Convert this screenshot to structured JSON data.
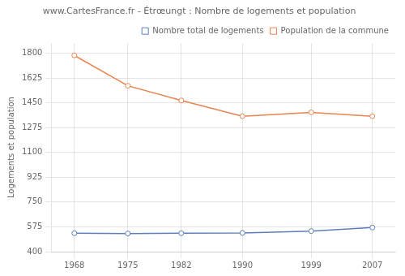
{
  "chart_data": {
    "type": "line",
    "title": "www.CartesFrance.fr - Étrœungt : Nombre de logements et population",
    "ylabel": "Logements et population",
    "x": [
      1968,
      1975,
      1982,
      1990,
      1999,
      2007
    ],
    "series": [
      {
        "name": "Nombre total de logements",
        "color": "#5b7fba",
        "marker": "circle",
        "line_style": "solid",
        "values": [
          530,
          528,
          530,
          532,
          545,
          570
        ]
      },
      {
        "name": "Population de la commune",
        "color": "#e8834e",
        "marker": "circle",
        "line_style": "solid",
        "values": [
          1784,
          1570,
          1466,
          1355,
          1382,
          1355
        ]
      }
    ],
    "xlim": [
      1965,
      2010
    ],
    "xticks": [
      1968,
      1975,
      1982,
      1990,
      1999,
      2007
    ],
    "ylim": [
      400,
      1870
    ],
    "yticks": [
      400,
      575,
      750,
      925,
      1100,
      1275,
      1450,
      1625,
      1800
    ],
    "grid": true,
    "legend": "upper right"
  }
}
